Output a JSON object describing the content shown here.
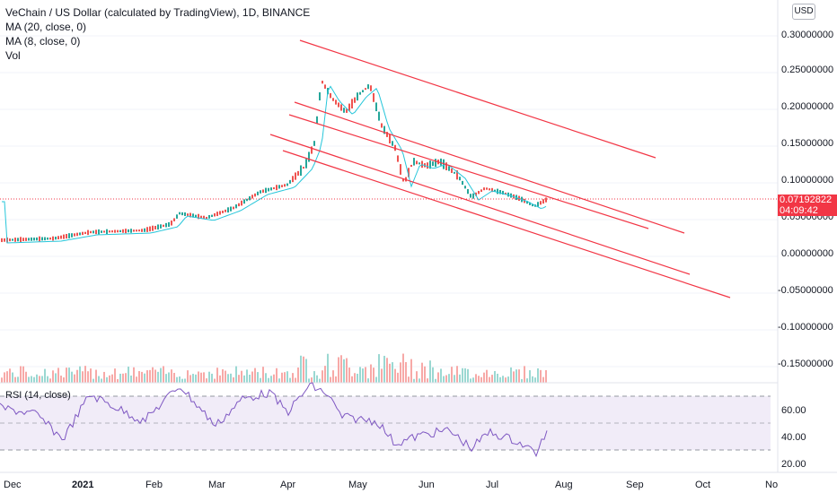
{
  "legend": {
    "title": "VeChain / US Dollar (calculated by TradingView), 1D, BINANCE",
    "ma20": "MA (20, close, 0)",
    "ma8": "MA (8, close, 0)",
    "vol": "Vol"
  },
  "currency_button": "USD",
  "rsi_title": "RSI (14, close)",
  "last_price": {
    "value": "0.07192822",
    "countdown": "04:09:42"
  },
  "price_axis": [
    "0.30000000",
    "0.25000000",
    "0.20000000",
    "0.15000000",
    "0.10000000",
    "0.05000000",
    "0.00000000",
    "-0.05000000",
    "-0.10000000",
    "-0.15000000"
  ],
  "rsi_axis": [
    "60.00",
    "40.00",
    "20.00"
  ],
  "time_axis": [
    "Dec",
    "2021",
    "Feb",
    "Mar",
    "Apr",
    "May",
    "Jun",
    "Jul",
    "Aug",
    "Sep",
    "Oct",
    "No"
  ],
  "colors": {
    "up": "#26a69a",
    "down": "#ef5350",
    "channel": "#f23645",
    "ma": "#26c6da",
    "rsi": "#7e57c2",
    "rsi_band": "#ede7f6"
  }
}
